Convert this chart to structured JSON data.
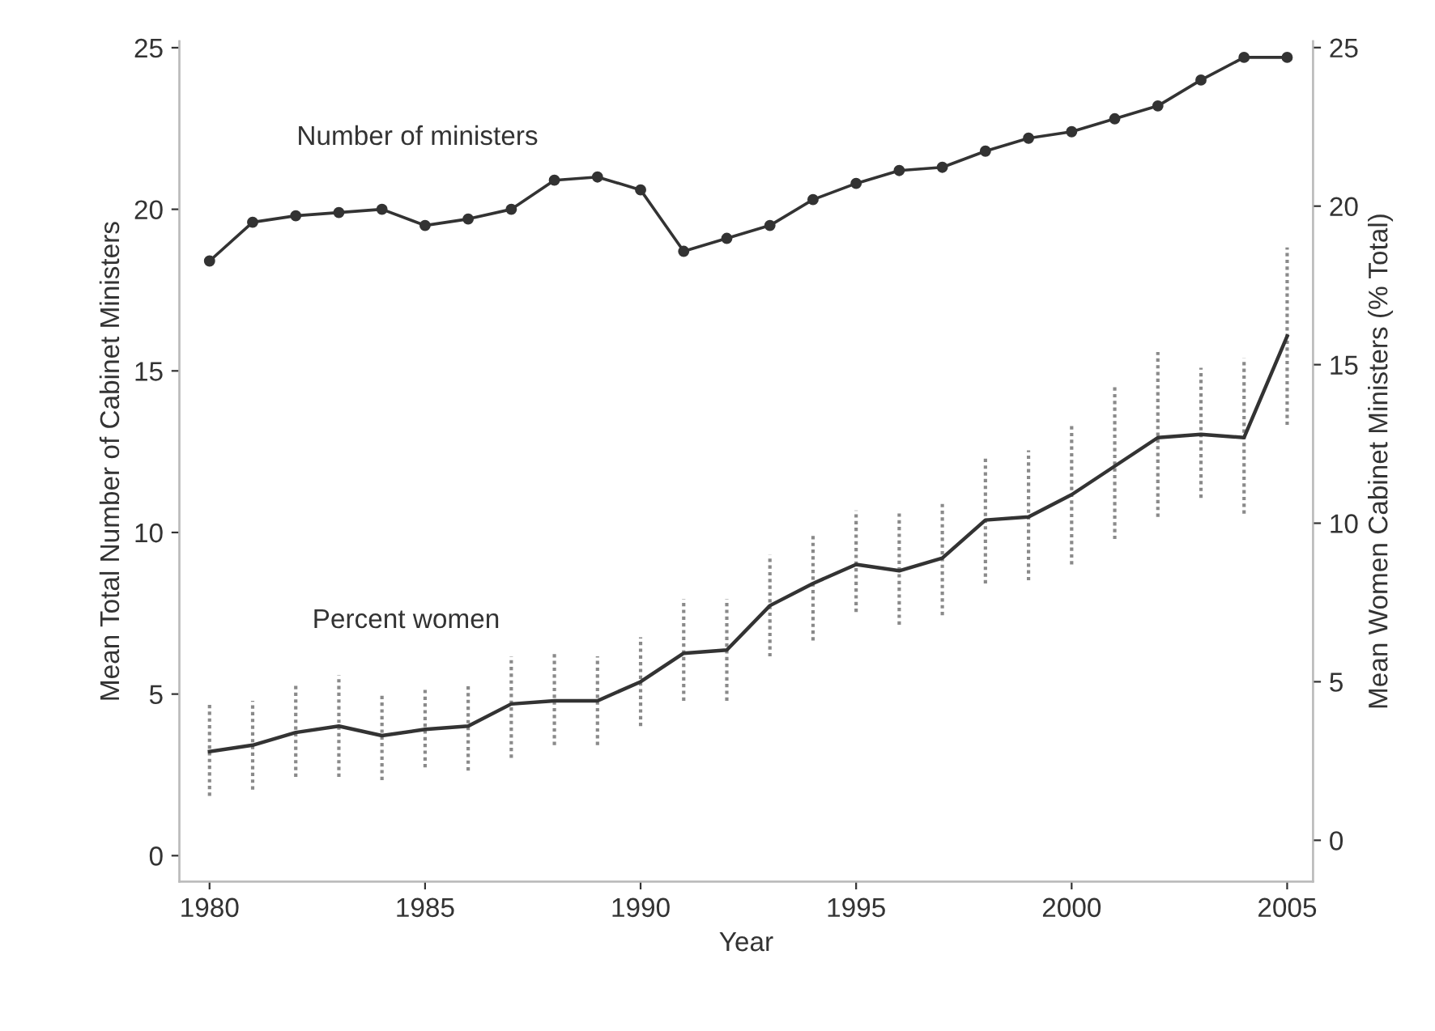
{
  "chart_data": {
    "type": "line",
    "xlabel": "Year",
    "ylabel": "Mean Total Number of Cabinet Ministers",
    "y2label": "Mean Women Cabinet Ministers (% Total)",
    "x": [
      1980,
      1981,
      1982,
      1983,
      1984,
      1985,
      1986,
      1987,
      1988,
      1989,
      1990,
      1991,
      1992,
      1993,
      1994,
      1995,
      1996,
      1997,
      1998,
      1999,
      2000,
      2001,
      2002,
      2003,
      2004,
      2005
    ],
    "series": [
      {
        "color": "#333333",
        "marker": "circle",
        "values": [
          18.4,
          19.6,
          19.8,
          19.9,
          20.0,
          19.5,
          19.7,
          20.0,
          20.9,
          21.0,
          20.6,
          18.7,
          19.1,
          19.5,
          20.3,
          20.8,
          21.2,
          21.3,
          21.8,
          22.2,
          22.4,
          22.8,
          23.2,
          24.0,
          24.7,
          24.7
        ]
      },
      {
        "color": "#333333",
        "axis": "y2",
        "values": [
          2.8,
          3.0,
          3.4,
          3.6,
          3.3,
          3.5,
          3.6,
          4.3,
          4.4,
          4.4,
          5.0,
          5.9,
          6.0,
          7.4,
          8.1,
          8.7,
          8.5,
          8.9,
          10.1,
          10.2,
          10.9,
          11.8,
          12.7,
          12.8,
          12.7,
          15.9
        ],
        "errors": [
          [
            1.4,
            4.3
          ],
          [
            1.6,
            4.4
          ],
          [
            2.0,
            4.9
          ],
          [
            2.0,
            5.2
          ],
          [
            1.9,
            4.6
          ],
          [
            2.3,
            4.8
          ],
          [
            2.2,
            4.9
          ],
          [
            2.6,
            5.8
          ],
          [
            3.0,
            5.9
          ],
          [
            3.0,
            5.8
          ],
          [
            3.6,
            6.4
          ],
          [
            4.4,
            7.6
          ],
          [
            4.4,
            7.6
          ],
          [
            5.8,
            9.0
          ],
          [
            6.3,
            9.6
          ],
          [
            7.2,
            10.4
          ],
          [
            6.8,
            10.4
          ],
          [
            7.1,
            10.7
          ],
          [
            8.1,
            12.1
          ],
          [
            8.2,
            12.3
          ],
          [
            8.7,
            13.1
          ],
          [
            9.5,
            14.3
          ],
          [
            10.2,
            15.4
          ],
          [
            10.8,
            14.9
          ],
          [
            10.3,
            15.2
          ],
          [
            13.1,
            18.7
          ]
        ]
      }
    ],
    "annotations": [
      "Number of ministers",
      "Percent women"
    ],
    "xlim": [
      1979.3,
      2005.6
    ],
    "xticks": [
      1980,
      1985,
      1990,
      1995,
      2000,
      2005
    ],
    "ylim": [
      -0.8,
      25.2
    ],
    "yticks": [
      0,
      5,
      10,
      15,
      20,
      25
    ],
    "y2lim": [
      -1.3,
      25.2
    ],
    "y2ticks": [
      0,
      5,
      10,
      15,
      20,
      25
    ],
    "grid": false,
    "legend": false
  }
}
